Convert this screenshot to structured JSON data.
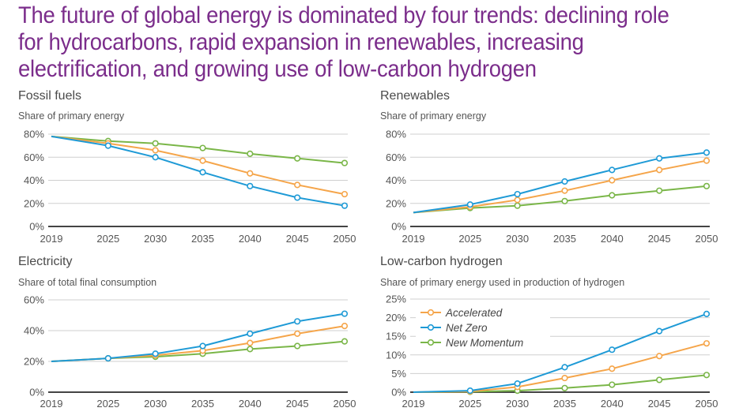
{
  "title": "The future of global energy is dominated by four trends: declining role for hydrocarbons, rapid expansion in renewables, increasing electrification, and growing use of low-carbon hydrogen",
  "colors": {
    "title": "#7b2d8b",
    "Accelerated": "#f5a54a",
    "Net Zero": "#1e9ad6",
    "New Momentum": "#7ab648",
    "grid": "#cfcfcf",
    "axis": "#444444"
  },
  "legend": [
    "Accelerated",
    "Net Zero",
    "New Momentum"
  ],
  "chart_data": [
    {
      "type": "line",
      "title": "Fossil fuels",
      "ylabel": "Share of primary energy",
      "xlabel": "",
      "x": [
        2019,
        2025,
        2030,
        2035,
        2040,
        2045,
        2050
      ],
      "xticks": [
        "2019",
        "2025",
        "2030",
        "2035",
        "2040",
        "2045",
        "2050"
      ],
      "ylim": [
        0,
        80
      ],
      "yticks": [
        0,
        20,
        40,
        60,
        80
      ],
      "ytick_labels": [
        "0%",
        "20%",
        "40%",
        "60%",
        "80%"
      ],
      "grid": true,
      "series": [
        {
          "name": "New Momentum",
          "values": [
            78,
            74,
            72,
            68,
            63,
            59,
            55
          ]
        },
        {
          "name": "Accelerated",
          "values": [
            78,
            72,
            66,
            57,
            46,
            36,
            28
          ]
        },
        {
          "name": "Net Zero",
          "values": [
            78,
            70,
            60,
            47,
            35,
            25,
            18
          ]
        }
      ]
    },
    {
      "type": "line",
      "title": "Renewables",
      "ylabel": "Share of primary energy",
      "xlabel": "",
      "x": [
        2019,
        2025,
        2030,
        2035,
        2040,
        2045,
        2050
      ],
      "xticks": [
        "2019",
        "2025",
        "2030",
        "2035",
        "2040",
        "2045",
        "2050"
      ],
      "ylim": [
        0,
        80
      ],
      "yticks": [
        0,
        20,
        40,
        60,
        80
      ],
      "ytick_labels": [
        "0%",
        "20%",
        "40%",
        "60%",
        "80%"
      ],
      "grid": true,
      "series": [
        {
          "name": "New Momentum",
          "values": [
            12,
            16,
            18,
            22,
            27,
            31,
            35
          ]
        },
        {
          "name": "Accelerated",
          "values": [
            12,
            17,
            23,
            31,
            40,
            49,
            57
          ]
        },
        {
          "name": "Net Zero",
          "values": [
            12,
            19,
            28,
            39,
            49,
            59,
            64
          ]
        }
      ]
    },
    {
      "type": "line",
      "title": "Electricity",
      "ylabel": "Share of total final consumption",
      "xlabel": "",
      "x": [
        2019,
        2025,
        2030,
        2035,
        2040,
        2045,
        2050
      ],
      "xticks": [
        "2019",
        "2025",
        "2030",
        "2035",
        "2040",
        "2045",
        "2050"
      ],
      "ylim": [
        0,
        60
      ],
      "yticks": [
        0,
        20,
        40,
        60
      ],
      "ytick_labels": [
        "0%",
        "20%",
        "40%",
        "60%"
      ],
      "grid": true,
      "series": [
        {
          "name": "New Momentum",
          "values": [
            20,
            22,
            23,
            25,
            28,
            30,
            33
          ]
        },
        {
          "name": "Accelerated",
          "values": [
            20,
            22,
            24,
            27,
            32,
            38,
            43
          ]
        },
        {
          "name": "Net Zero",
          "values": [
            20,
            22,
            25,
            30,
            38,
            46,
            51
          ]
        }
      ]
    },
    {
      "type": "line",
      "title": "Low-carbon hydrogen",
      "ylabel": "Share of primary energy used in production of hydrogen",
      "xlabel": "",
      "x": [
        2019,
        2025,
        2030,
        2035,
        2040,
        2045,
        2050
      ],
      "xticks": [
        "2019",
        "2025",
        "2030",
        "2035",
        "2040",
        "2045",
        "2050"
      ],
      "ylim": [
        0,
        25
      ],
      "yticks": [
        0,
        5,
        10,
        15,
        20,
        25
      ],
      "ytick_labels": [
        "0%",
        "5%",
        "10%",
        "15%",
        "20%",
        "25%"
      ],
      "grid": true,
      "legend": "top-left",
      "series": [
        {
          "name": "New Momentum",
          "values": [
            0,
            0.1,
            0.4,
            1.1,
            2.0,
            3.3,
            4.6
          ]
        },
        {
          "name": "Accelerated",
          "values": [
            0,
            0.2,
            1.4,
            3.8,
            6.3,
            9.7,
            13.1
          ]
        },
        {
          "name": "Net Zero",
          "values": [
            0,
            0.4,
            2.3,
            6.7,
            11.4,
            16.4,
            21.0
          ]
        }
      ]
    }
  ]
}
